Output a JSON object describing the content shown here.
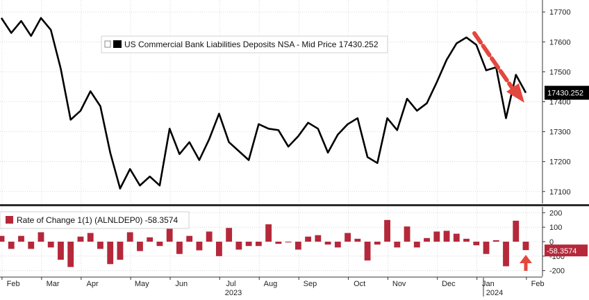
{
  "colors": {
    "line": "#000000",
    "bar": "#b5283a",
    "grid": "#cfcfcf",
    "divider": "#2b2b2b",
    "arrow": "#e4473d",
    "last_tag_bg": "#000000",
    "last_tag_text": "#ffffff",
    "roc_tag_bg": "#b5283a",
    "roc_tag_text": "#ffffff"
  },
  "chart_data": [
    {
      "type": "line",
      "legend": "US Commercial Bank Liabilities Deposits NSA - Mid Price 17430.252",
      "legend_placement": "top-left",
      "last_value_label": "17430.252",
      "ylim": [
        17060,
        17740
      ],
      "yticks": [
        17100,
        17200,
        17300,
        17400,
        17500,
        17600,
        17700
      ],
      "ytick_labels": [
        "17100",
        "17200",
        "17300",
        "17400",
        "17500",
        "17600",
        "17700"
      ],
      "grid": true,
      "annotation": "red dashed downward arrow from late December 2023 to February 2024",
      "values": [
        17680,
        17630,
        17670,
        17620,
        17680,
        17640,
        17510,
        17340,
        17370,
        17435,
        17385,
        17230,
        17110,
        17175,
        17120,
        17150,
        17120,
        17310,
        17225,
        17265,
        17205,
        17275,
        17360,
        17265,
        17235,
        17205,
        17325,
        17310,
        17305,
        17250,
        17285,
        17330,
        17310,
        17230,
        17290,
        17325,
        17345,
        17215,
        17195,
        17345,
        17305,
        17410,
        17370,
        17395,
        17465,
        17540,
        17595,
        17615,
        17590,
        17505,
        17515,
        17345,
        17490,
        17430
      ]
    },
    {
      "type": "bar",
      "legend": "Rate of Change 1(1) (ALNLDEP0) -58.3574",
      "legend_placement": "top-left",
      "last_value_label": "-58.3574",
      "ylim": [
        -240,
        240
      ],
      "yticks": [
        -200,
        -100,
        0,
        100,
        200
      ],
      "ytick_labels": [
        "-200",
        "-100",
        "0",
        "100",
        "200"
      ],
      "grid": true,
      "annotation": "red arrow pointing up at the final bar",
      "values": [
        40,
        -50,
        40,
        -50,
        65,
        -40,
        -125,
        -175,
        35,
        60,
        -50,
        -155,
        -125,
        65,
        -65,
        30,
        -30,
        190,
        -85,
        40,
        -60,
        70,
        -100,
        95,
        -55,
        -30,
        -30,
        120,
        -15,
        -5,
        -55,
        35,
        45,
        -20,
        -40,
        60,
        20,
        -130,
        -20,
        150,
        -40,
        105,
        -40,
        25,
        70,
        75,
        55,
        20,
        -25,
        -85,
        10,
        -170,
        145,
        -58.3574
      ]
    }
  ],
  "x_axis": {
    "months": [
      "Feb",
      "Mar",
      "Apr",
      "May",
      "Jun",
      "Jul",
      "Aug",
      "Sep",
      "Oct",
      "Nov",
      "Dec",
      "Jan",
      "Feb"
    ],
    "years": [
      "2023",
      "2024"
    ]
  }
}
